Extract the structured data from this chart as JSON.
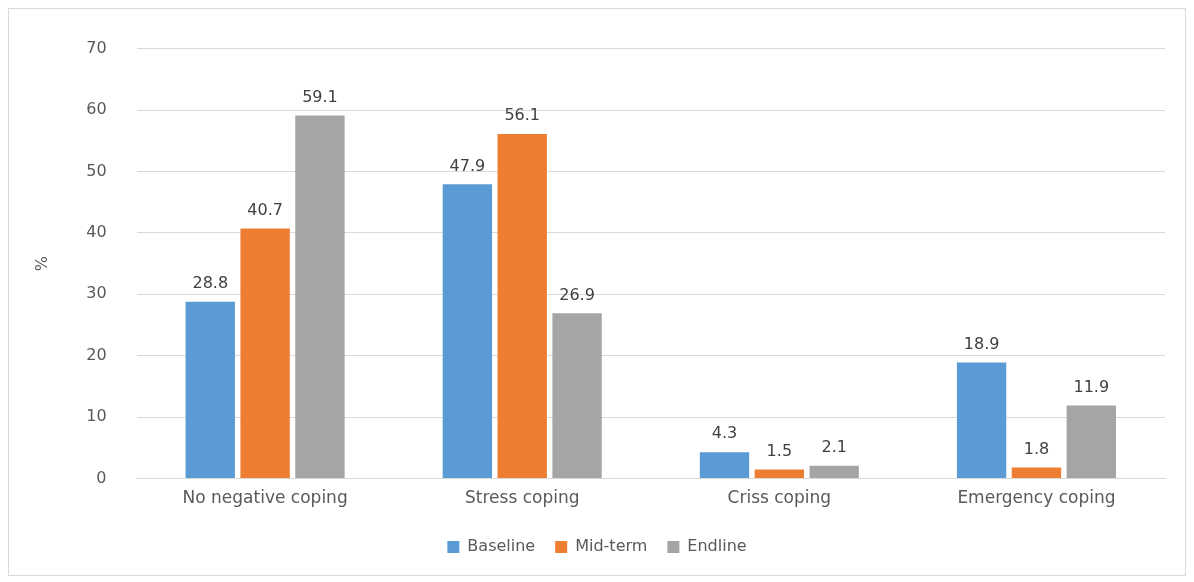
{
  "chart_data": {
    "type": "bar",
    "ylabel": "%",
    "categories": [
      "No negative coping",
      "Stress coping",
      "Criss coping",
      "Emergency coping"
    ],
    "series": [
      {
        "name": "Baseline",
        "color": "#5b9bd5",
        "values": [
          28.8,
          47.9,
          4.3,
          18.9
        ]
      },
      {
        "name": "Mid-term",
        "color": "#ed7d31",
        "values": [
          40.7,
          56.1,
          1.5,
          1.8
        ]
      },
      {
        "name": "Endline",
        "color": "#a5a5a5",
        "values": [
          59.1,
          26.9,
          2.1,
          11.9
        ]
      }
    ],
    "ylim": [
      0,
      70
    ],
    "yticks": [
      0,
      10,
      20,
      30,
      40,
      50,
      60,
      70
    ],
    "grid": "y",
    "legend": "bottom",
    "data_labels": true
  }
}
